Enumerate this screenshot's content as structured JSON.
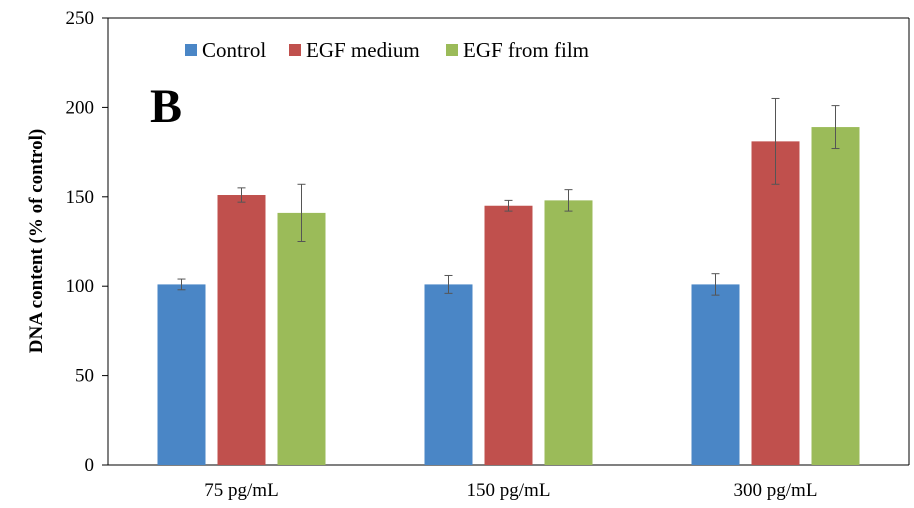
{
  "chart_data": {
    "type": "bar",
    "title": "",
    "panel_label": "B",
    "xlabel": "",
    "ylabel": "DNA content (% of control)",
    "ylim": [
      0,
      250
    ],
    "yticks": [
      0,
      50,
      100,
      150,
      200,
      250
    ],
    "grid": false,
    "legend_position": "top-left",
    "categories": [
      "75 pg/mL",
      "150 pg/mL",
      "300 pg/mL"
    ],
    "series": [
      {
        "name": "Control",
        "color": "#4a86c6",
        "values": [
          101,
          101,
          101
        ],
        "errors": [
          3,
          5,
          6
        ]
      },
      {
        "name": "EGF medium",
        "color": "#c0504d",
        "values": [
          151,
          145,
          181
        ],
        "errors": [
          4,
          3,
          24
        ]
      },
      {
        "name": "EGF from film",
        "color": "#9bbb59",
        "values": [
          141,
          148,
          189
        ],
        "errors": [
          16,
          6,
          12
        ]
      }
    ]
  }
}
